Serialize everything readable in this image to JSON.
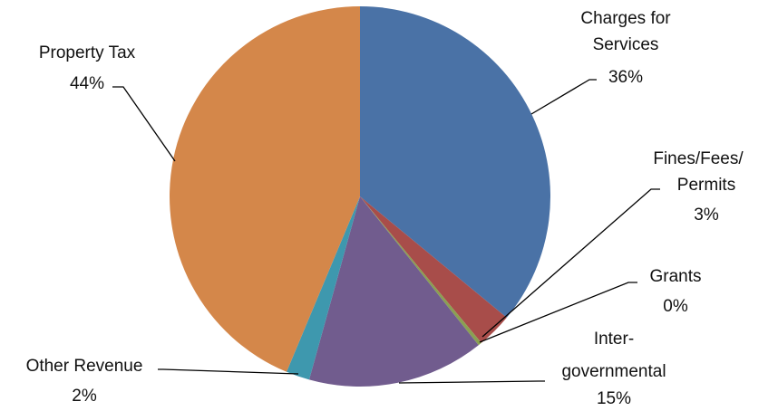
{
  "chart_data": {
    "type": "pie",
    "title": "",
    "slices": [
      {
        "name": "Charges for Services",
        "label_lines": [
          "Charges for",
          "Services"
        ],
        "percent_label": "36%",
        "value": 36.0,
        "color": "#4A72A6"
      },
      {
        "name": "Fines/Fees/Permits",
        "label_lines": [
          "Fines/Fees/",
          "Permits"
        ],
        "percent_label": "3%",
        "value": 3.0,
        "color": "#A84D4A"
      },
      {
        "name": "Grants",
        "label_lines": [
          "Grants"
        ],
        "percent_label": "0%",
        "value": 0.3,
        "color": "#8AA052"
      },
      {
        "name": "Inter-governmental",
        "label_lines": [
          "Inter-",
          "governmental"
        ],
        "percent_label": "15%",
        "value": 15.0,
        "color": "#715C8E"
      },
      {
        "name": "Other Revenue",
        "label_lines": [
          "Other Revenue"
        ],
        "percent_label": "2%",
        "value": 2.0,
        "color": "#3E98AE"
      },
      {
        "name": "Property Tax",
        "label_lines": [
          "Property Tax"
        ],
        "percent_label": "44%",
        "value": 43.7,
        "color": "#D4874A"
      }
    ]
  }
}
